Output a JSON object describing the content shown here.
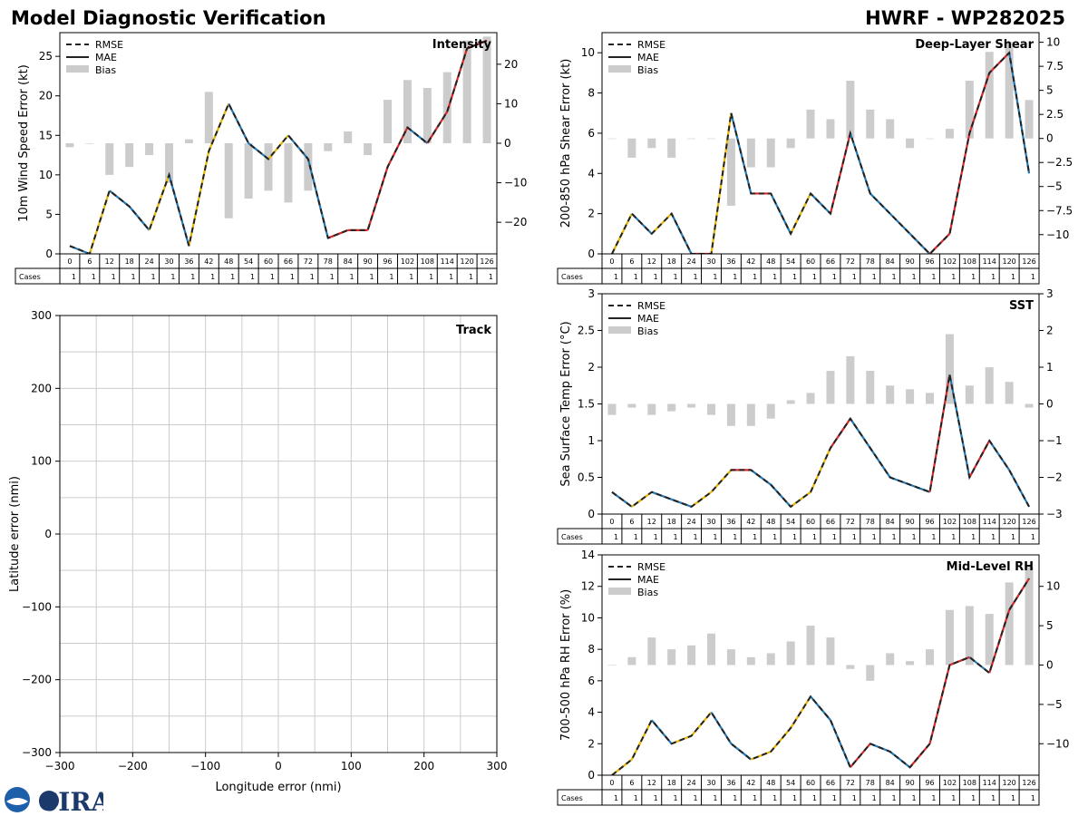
{
  "header": {
    "left_title": "Model Diagnostic Verification",
    "right_title": "HWRF - WP282025"
  },
  "logo_text": "CIRA",
  "chart_data": [
    {
      "id": "intensity",
      "type": "line",
      "title": "Intensity",
      "ylabel": "10m Wind Speed Error (kt)",
      "ylim": [
        0,
        28
      ],
      "yticks": [
        0,
        5,
        10,
        15,
        20,
        25
      ],
      "y2lim": [
        -28,
        28
      ],
      "y2ticks": [
        -20,
        -10,
        0,
        10,
        20
      ],
      "x": [
        0,
        6,
        12,
        18,
        24,
        30,
        36,
        42,
        48,
        54,
        60,
        66,
        72,
        78,
        84,
        90,
        96,
        102,
        108,
        114,
        120,
        126
      ],
      "legend": [
        "RMSE",
        "MAE",
        "Bias"
      ],
      "series": [
        {
          "name": "RMSE",
          "values": [
            1,
            0,
            8,
            6,
            3,
            10,
            1,
            13,
            19,
            14,
            12,
            15,
            12,
            2,
            3,
            3,
            11,
            16,
            14,
            18,
            26,
            27
          ]
        },
        {
          "name": "MAE",
          "values": [
            1,
            0,
            8,
            6,
            3,
            10,
            1,
            13,
            19,
            14,
            12,
            15,
            12,
            2,
            3,
            3,
            11,
            16,
            14,
            18,
            26,
            27
          ]
        },
        {
          "name": "Bias",
          "values": [
            -1,
            0,
            -8,
            -6,
            -3,
            -10,
            1,
            13,
            -19,
            -14,
            -12,
            -15,
            -12,
            -2,
            3,
            -3,
            11,
            16,
            14,
            18,
            26,
            27
          ]
        }
      ],
      "table": {
        "row_label": "Cases",
        "cases": [
          1,
          1,
          1,
          1,
          1,
          1,
          1,
          1,
          1,
          1,
          1,
          1,
          1,
          1,
          1,
          1,
          1,
          1,
          1,
          1,
          1,
          1
        ]
      }
    },
    {
      "id": "shear",
      "type": "line",
      "title": "Deep-Layer Shear",
      "ylabel": "200-850 hPa Shear Error (kt)",
      "ylim": [
        0,
        11
      ],
      "yticks": [
        0,
        2,
        4,
        6,
        8,
        10
      ],
      "y2lim": [
        -12,
        11
      ],
      "y2ticks": [
        -10.0,
        -7.5,
        -5.0,
        -2.5,
        0.0,
        2.5,
        5.0,
        7.5,
        10.0
      ],
      "x": [
        0,
        6,
        12,
        18,
        24,
        30,
        36,
        42,
        48,
        54,
        60,
        66,
        72,
        78,
        84,
        90,
        96,
        102,
        108,
        114,
        120,
        126
      ],
      "legend": [
        "RMSE",
        "MAE",
        "Bias"
      ],
      "series": [
        {
          "name": "RMSE",
          "values": [
            0,
            2,
            1,
            2,
            0,
            0,
            7,
            3,
            3,
            1,
            3,
            2,
            6,
            3,
            2,
            1,
            0,
            1,
            6,
            9,
            10,
            4
          ]
        },
        {
          "name": "MAE",
          "values": [
            0,
            2,
            1,
            2,
            0,
            0,
            7,
            3,
            3,
            1,
            3,
            2,
            6,
            3,
            2,
            1,
            0,
            1,
            6,
            9,
            10,
            4
          ]
        },
        {
          "name": "Bias",
          "values": [
            0,
            -2,
            -1,
            -2,
            0,
            0,
            -7,
            -3,
            -3,
            -1,
            3,
            2,
            6,
            3,
            2,
            -1,
            0,
            1,
            6,
            9,
            10,
            4
          ]
        }
      ],
      "table": {
        "row_label": "Cases",
        "cases": [
          1,
          1,
          1,
          1,
          1,
          1,
          1,
          1,
          1,
          1,
          1,
          1,
          1,
          1,
          1,
          1,
          1,
          1,
          1,
          1,
          1,
          1
        ]
      }
    },
    {
      "id": "track",
      "type": "scatter",
      "title": "Track",
      "xlabel": "Longitude error (nmi)",
      "ylabel": "Latitude error (nmi)",
      "xlim": [
        -300,
        300
      ],
      "ylim": [
        -300,
        300
      ],
      "xticks": [
        -300,
        -200,
        -100,
        0,
        100,
        200,
        300
      ],
      "yticks": [
        -300,
        -200,
        -100,
        0,
        100,
        200,
        300
      ],
      "xtick_labels": [
        "−300",
        "−200",
        "−100",
        "0",
        "100",
        "200",
        "300"
      ],
      "ytick_labels": [
        "−300",
        "−200",
        "−100",
        "0",
        "100",
        "200",
        "300"
      ],
      "grid": true,
      "grid_step": 50,
      "points": []
    },
    {
      "id": "sst",
      "type": "line",
      "title": "SST",
      "ylabel": "Sea Surface Temp Error (°C)",
      "ylim": [
        0,
        3.0
      ],
      "yticks": [
        0.0,
        0.5,
        1.0,
        1.5,
        2.0,
        2.5,
        3.0
      ],
      "y2lim": [
        -3,
        3
      ],
      "y2ticks": [
        -3,
        -2,
        -1,
        0,
        1,
        2,
        3
      ],
      "x": [
        0,
        6,
        12,
        18,
        24,
        30,
        36,
        42,
        48,
        54,
        60,
        66,
        72,
        78,
        84,
        90,
        96,
        102,
        108,
        114,
        120,
        126
      ],
      "legend": [
        "RMSE",
        "MAE",
        "Bias"
      ],
      "series": [
        {
          "name": "RMSE",
          "values": [
            0.3,
            0.1,
            0.3,
            0.2,
            0.1,
            0.3,
            0.6,
            0.6,
            0.4,
            0.1,
            0.3,
            0.9,
            1.3,
            0.9,
            0.5,
            0.4,
            0.3,
            1.9,
            0.5,
            1.0,
            0.6,
            0.1
          ]
        },
        {
          "name": "MAE",
          "values": [
            0.3,
            0.1,
            0.3,
            0.2,
            0.1,
            0.3,
            0.6,
            0.6,
            0.4,
            0.1,
            0.3,
            0.9,
            1.3,
            0.9,
            0.5,
            0.4,
            0.3,
            1.9,
            0.5,
            1.0,
            0.6,
            0.1
          ]
        },
        {
          "name": "Bias",
          "values": [
            -0.3,
            -0.1,
            -0.3,
            -0.2,
            -0.1,
            -0.3,
            -0.6,
            -0.6,
            -0.4,
            0.1,
            0.3,
            0.9,
            1.3,
            0.9,
            0.5,
            0.4,
            0.3,
            1.9,
            0.5,
            1.0,
            0.6,
            -0.1
          ]
        }
      ],
      "table": {
        "row_label": "Cases",
        "cases": [
          1,
          1,
          1,
          1,
          1,
          1,
          1,
          1,
          1,
          1,
          1,
          1,
          1,
          1,
          1,
          1,
          1,
          1,
          1,
          1,
          1,
          1
        ]
      }
    },
    {
      "id": "rh",
      "type": "line",
      "title": "Mid-Level RH",
      "ylabel": "700-500 hPa RH Error (%)",
      "ylim": [
        0,
        14
      ],
      "yticks": [
        0,
        2,
        4,
        6,
        8,
        10,
        12,
        14
      ],
      "y2lim": [
        -14,
        14
      ],
      "y2ticks": [
        -10,
        -5,
        0,
        5,
        10
      ],
      "x": [
        0,
        6,
        12,
        18,
        24,
        30,
        36,
        42,
        48,
        54,
        60,
        66,
        72,
        78,
        84,
        90,
        96,
        102,
        108,
        114,
        120,
        126
      ],
      "legend": [
        "RMSE",
        "MAE",
        "Bias"
      ],
      "series": [
        {
          "name": "RMSE",
          "values": [
            0,
            1.0,
            3.5,
            2.0,
            2.5,
            4.0,
            2.0,
            1.0,
            1.5,
            3.0,
            5.0,
            3.5,
            0.5,
            2.0,
            1.5,
            0.5,
            2.0,
            7.0,
            7.5,
            6.5,
            10.5,
            12.5
          ]
        },
        {
          "name": "MAE",
          "values": [
            0,
            1.0,
            3.5,
            2.0,
            2.5,
            4.0,
            2.0,
            1.0,
            1.5,
            3.0,
            5.0,
            3.5,
            0.5,
            2.0,
            1.5,
            0.5,
            2.0,
            7.0,
            7.5,
            6.5,
            10.5,
            12.5
          ]
        },
        {
          "name": "Bias",
          "values": [
            0,
            1.0,
            3.5,
            2.0,
            2.5,
            4.0,
            2.0,
            1.0,
            1.5,
            3.0,
            5.0,
            3.5,
            -0.5,
            -2.0,
            1.5,
            0.5,
            2.0,
            7.0,
            7.5,
            6.5,
            10.5,
            12.5
          ]
        }
      ],
      "table": {
        "row_label": "Cases",
        "cases": [
          1,
          1,
          1,
          1,
          1,
          1,
          1,
          1,
          1,
          1,
          1,
          1,
          1,
          1,
          1,
          1,
          1,
          1,
          1,
          1,
          1,
          1
        ]
      }
    }
  ]
}
